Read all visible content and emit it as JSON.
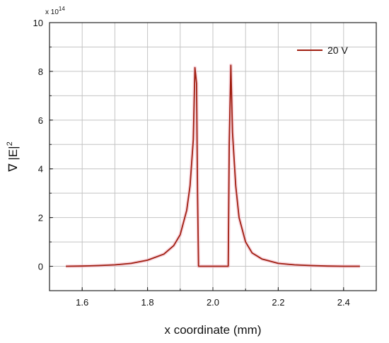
{
  "chart_data": {
    "type": "line",
    "xlabel": "x coordinate (mm)",
    "ylabel_prefix": "∇ |E|",
    "ylabel_sup": "2",
    "y_multiplier_prefix": "x 10",
    "y_multiplier_exp": "14",
    "xlim": [
      1.5,
      2.5
    ],
    "ylim": [
      -1,
      10
    ],
    "x_ticks": [
      1.6,
      1.8,
      2.0,
      2.2,
      2.4
    ],
    "x_tick_labels": [
      "1.6",
      "1.8",
      "2.0",
      "2.2",
      "2.4"
    ],
    "y_ticks": [
      0,
      2,
      4,
      6,
      8,
      10
    ],
    "y_tick_labels": [
      "0",
      "2",
      "4",
      "6",
      "8",
      "10"
    ],
    "grid": true,
    "legend_position": "top-right",
    "series": [
      {
        "name": "20 V",
        "color": "#a01e10",
        "x": [
          1.55,
          1.6,
          1.65,
          1.7,
          1.75,
          1.8,
          1.85,
          1.88,
          1.9,
          1.92,
          1.93,
          1.94,
          1.945,
          1.95,
          1.953,
          1.956,
          1.96,
          2.0,
          2.04,
          2.047,
          2.05,
          2.055,
          2.06,
          2.07,
          2.08,
          2.1,
          2.12,
          2.15,
          2.2,
          2.25,
          2.3,
          2.35,
          2.4,
          2.45
        ],
        "y": [
          0.0,
          0.01,
          0.03,
          0.06,
          0.12,
          0.25,
          0.5,
          0.85,
          1.3,
          2.3,
          3.3,
          5.2,
          8.15,
          7.5,
          3.0,
          0.0,
          0.0,
          0.0,
          0.0,
          0.0,
          5.0,
          8.25,
          5.5,
          3.3,
          2.0,
          1.0,
          0.55,
          0.3,
          0.12,
          0.06,
          0.03,
          0.01,
          0.0,
          0.0
        ]
      }
    ]
  }
}
